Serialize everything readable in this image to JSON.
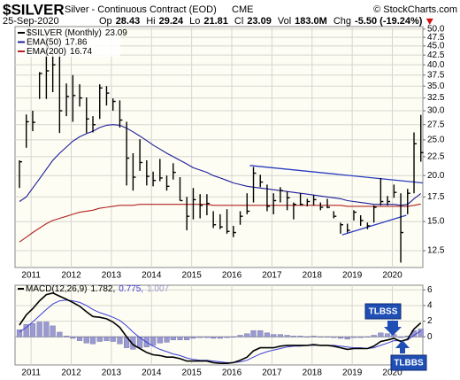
{
  "header": {
    "symbol": "$SILVER",
    "name": "Silver - Continuous Contract (EOD)",
    "exchange": "CME",
    "source": "© StockCharts.com",
    "date": "25-Sep-2020",
    "quote": [
      {
        "label": "Op",
        "value": "28.43"
      },
      {
        "label": "Hi",
        "value": "29.24"
      },
      {
        "label": "Lo",
        "value": "21.81"
      },
      {
        "label": "Cl",
        "value": "23.09"
      },
      {
        "label": "Vol",
        "value": "183.0M"
      },
      {
        "label": "Chg",
        "value": "-5.50 (-19.24%)"
      }
    ]
  },
  "chart_data": [
    {
      "type": "ohlc",
      "name": "$SILVER (Monthly)",
      "color": "#000000",
      "log_scale": true,
      "grid": true,
      "x": [
        2010.71,
        2010.88,
        2011.04,
        2011.21,
        2011.38,
        2011.54,
        2011.71,
        2011.88,
        2012.04,
        2012.21,
        2012.38,
        2012.54,
        2012.71,
        2012.88,
        2013.04,
        2013.21,
        2013.38,
        2013.54,
        2013.71,
        2013.88,
        2014.04,
        2014.21,
        2014.38,
        2014.54,
        2014.71,
        2014.88,
        2015.04,
        2015.21,
        2015.38,
        2015.54,
        2015.71,
        2015.88,
        2016.04,
        2016.21,
        2016.38,
        2016.54,
        2016.71,
        2016.88,
        2017.04,
        2017.21,
        2017.38,
        2017.54,
        2017.71,
        2017.88,
        2018.04,
        2018.21,
        2018.38,
        2018.54,
        2018.71,
        2018.88,
        2019.04,
        2019.21,
        2019.38,
        2019.54,
        2019.71,
        2019.88,
        2020.04,
        2020.21,
        2020.38,
        2020.54,
        2020.71
      ],
      "high": [
        22.0,
        29.3,
        30.0,
        38.2,
        49.8,
        44.3,
        43.0,
        35.6,
        37.5,
        35.4,
        32.6,
        29.0,
        35.4,
        35.0,
        32.4,
        32.0,
        28.0,
        23.0,
        25.1,
        22.0,
        20.5,
        22.2,
        20.0,
        21.6,
        19.8,
        17.5,
        18.5,
        17.8,
        17.8,
        16.0,
        15.7,
        16.2,
        14.6,
        16.0,
        17.9,
        21.1,
        20.1,
        18.9,
        17.9,
        18.6,
        18.1,
        16.9,
        17.9,
        17.3,
        17.7,
        16.9,
        17.3,
        16.0,
        14.9,
        14.8,
        16.1,
        15.6,
        14.9,
        16.6,
        19.7,
        17.6,
        18.9,
        17.9,
        18.4,
        26.2,
        29.24
      ],
      "low": [
        18.5,
        23.8,
        26.4,
        32.3,
        32.3,
        33.7,
        26.1,
        29.0,
        28.0,
        30.8,
        26.1,
        26.2,
        28.5,
        31.0,
        30.0,
        27.0,
        18.8,
        18.2,
        20.6,
        18.8,
        18.7,
        19.3,
        18.2,
        19.5,
        17.1,
        14.2,
        15.2,
        15.3,
        15.6,
        14.4,
        14.3,
        13.9,
        13.6,
        14.7,
        15.7,
        16.9,
        18.6,
        16.0,
        15.7,
        16.9,
        16.1,
        15.2,
        16.6,
        16.5,
        16.6,
        16.1,
        16.3,
        15.3,
        13.9,
        14.0,
        15.1,
        14.6,
        14.3,
        14.9,
        16.6,
        16.6,
        17.4,
        11.6,
        15.7,
        17.9,
        21.81
      ],
      "close": [
        21.8,
        28.0,
        27.9,
        37.9,
        38.5,
        40.0,
        30.0,
        32.8,
        33.0,
        32.5,
        28.5,
        27.5,
        34.6,
        33.5,
        31.8,
        28.3,
        22.3,
        19.8,
        21.7,
        19.9,
        19.4,
        19.7,
        18.7,
        20.4,
        17.1,
        15.5,
        17.2,
        16.6,
        16.8,
        14.7,
        14.5,
        14.1,
        14.0,
        15.5,
        16.0,
        20.3,
        19.2,
        16.5,
        17.1,
        18.2,
        17.4,
        16.7,
        16.7,
        17.0,
        17.2,
        16.4,
        16.4,
        15.5,
        14.7,
        14.2,
        15.9,
        15.1,
        14.6,
        16.4,
        17.0,
        17.0,
        18.0,
        14.0,
        17.9,
        24.4,
        23.09
      ],
      "overlays": [
        {
          "name": "EMA(50)",
          "color": "#1c1c9c",
          "values": [
            17.0,
            17.5,
            18.5,
            19.6,
            20.8,
            22.0,
            23.0,
            23.9,
            24.8,
            25.5,
            26.0,
            26.4,
            27.0,
            27.4,
            27.5,
            27.4,
            26.9,
            26.3,
            25.6,
            24.9,
            24.2,
            23.6,
            23.0,
            22.5,
            22.0,
            21.5,
            21.0,
            20.7,
            20.4,
            20.0,
            19.7,
            19.4,
            19.1,
            18.9,
            18.7,
            18.6,
            18.5,
            18.4,
            18.3,
            18.2,
            18.1,
            18.0,
            17.9,
            17.8,
            17.7,
            17.6,
            17.5,
            17.4,
            17.3,
            17.1,
            17.0,
            16.9,
            16.8,
            16.7,
            16.7,
            16.7,
            16.7,
            16.6,
            16.7,
            17.3,
            17.86
          ]
        },
        {
          "name": "EMA(200)",
          "color": "#b22222",
          "values": [
            13.2,
            13.6,
            14.0,
            14.4,
            14.8,
            15.1,
            15.3,
            15.5,
            15.7,
            15.9,
            16.0,
            16.1,
            16.3,
            16.4,
            16.5,
            16.6,
            16.6,
            16.6,
            16.7,
            16.7,
            16.7,
            16.7,
            16.7,
            16.7,
            16.7,
            16.7,
            16.7,
            16.7,
            16.7,
            16.6,
            16.6,
            16.6,
            16.6,
            16.6,
            16.6,
            16.6,
            16.6,
            16.6,
            16.6,
            16.6,
            16.6,
            16.6,
            16.6,
            16.6,
            16.6,
            16.6,
            16.6,
            16.6,
            16.6,
            16.5,
            16.5,
            16.5,
            16.5,
            16.5,
            16.5,
            16.5,
            16.5,
            16.5,
            16.5,
            16.6,
            16.74
          ]
        }
      ],
      "trendlines": [
        {
          "color": "#2a3cc0",
          "x": [
            2016.45,
            2020.76
          ],
          "values": [
            21.3,
            19.1
          ]
        },
        {
          "color": "#2a3cc0",
          "x": [
            2018.75,
            2020.35
          ],
          "values": [
            13.8,
            15.6
          ]
        }
      ],
      "xlim": [
        2010.6,
        2020.76
      ],
      "xticks": [
        2011,
        2012,
        2013,
        2014,
        2015,
        2016,
        2017,
        2018,
        2019,
        2020
      ],
      "ylim": [
        11.25,
        50.8
      ],
      "yticks": [
        12.5,
        {
          "value": 15,
          "label": "15.0"
        },
        17.5,
        {
          "value": 20,
          "label": "20.0"
        },
        22.5,
        {
          "value": 25,
          "label": "25.0"
        },
        27.5,
        {
          "value": 30,
          "label": "30.0"
        },
        32.5,
        {
          "value": 35,
          "label": "35.0"
        },
        37.5,
        {
          "value": 40,
          "label": "40.0"
        },
        42.5,
        {
          "value": 45,
          "label": "45.0"
        },
        47.5,
        {
          "value": 50,
          "label": "50.0"
        }
      ]
    },
    {
      "type": "macd",
      "title": "MACD(12,26,9)",
      "grid": true,
      "x": [
        2010.71,
        2010.88,
        2011.04,
        2011.21,
        2011.38,
        2011.54,
        2011.71,
        2011.88,
        2012.04,
        2012.21,
        2012.38,
        2012.54,
        2012.71,
        2012.88,
        2013.04,
        2013.21,
        2013.38,
        2013.54,
        2013.71,
        2013.88,
        2014.04,
        2014.21,
        2014.38,
        2014.54,
        2014.71,
        2014.88,
        2015.04,
        2015.21,
        2015.38,
        2015.54,
        2015.71,
        2015.88,
        2016.04,
        2016.21,
        2016.38,
        2016.54,
        2016.71,
        2016.88,
        2017.04,
        2017.21,
        2017.38,
        2017.54,
        2017.71,
        2017.88,
        2018.04,
        2018.21,
        2018.38,
        2018.54,
        2018.71,
        2018.88,
        2019.04,
        2019.21,
        2019.38,
        2019.54,
        2019.71,
        2019.88,
        2020.04,
        2020.21,
        2020.38,
        2020.54,
        2020.71
      ],
      "macd": {
        "color": "#000000",
        "values": [
          1.5,
          2.8,
          3.6,
          4.6,
          5.4,
          5.6,
          5.2,
          4.8,
          4.4,
          3.9,
          3.2,
          2.6,
          2.5,
          2.3,
          1.9,
          1.2,
          0.0,
          -1.0,
          -1.5,
          -2.0,
          -2.3,
          -2.4,
          -2.6,
          -2.6,
          -2.8,
          -3.1,
          -3.1,
          -3.1,
          -3.1,
          -3.3,
          -3.4,
          -3.4,
          -3.3,
          -3.0,
          -2.6,
          -1.8,
          -1.4,
          -1.4,
          -1.4,
          -1.2,
          -1.1,
          -1.1,
          -1.1,
          -1.1,
          -1.0,
          -1.1,
          -1.1,
          -1.2,
          -1.4,
          -1.6,
          -1.5,
          -1.5,
          -1.5,
          -1.2,
          -0.6,
          -0.4,
          -0.2,
          -0.6,
          -0.3,
          1.0,
          1.782
        ]
      },
      "signal": {
        "color": "#3d3dd6",
        "values": [
          0.6,
          1.2,
          1.9,
          2.7,
          3.5,
          4.2,
          4.6,
          4.7,
          4.6,
          4.4,
          4.0,
          3.5,
          3.1,
          2.8,
          2.5,
          2.1,
          1.4,
          0.6,
          -0.1,
          -0.7,
          -1.2,
          -1.6,
          -1.9,
          -2.2,
          -2.4,
          -2.7,
          -2.9,
          -3.0,
          -3.0,
          -3.1,
          -3.2,
          -3.3,
          -3.3,
          -3.2,
          -3.0,
          -2.6,
          -2.2,
          -1.9,
          -1.7,
          -1.5,
          -1.3,
          -1.2,
          -1.2,
          -1.1,
          -1.1,
          -1.1,
          -1.1,
          -1.1,
          -1.2,
          -1.3,
          -1.4,
          -1.4,
          -1.5,
          -1.4,
          -1.1,
          -0.8,
          -0.5,
          -0.5,
          -0.4,
          0.2,
          0.775
        ]
      },
      "histogram": {
        "color": "#9a9ad0",
        "values": [
          0.9,
          1.6,
          1.7,
          1.9,
          1.9,
          1.4,
          0.6,
          0.1,
          -0.2,
          -0.5,
          -0.8,
          -0.9,
          -0.6,
          -0.5,
          -0.6,
          -0.9,
          -1.4,
          -1.6,
          -1.4,
          -1.3,
          -1.1,
          -0.8,
          -0.7,
          -0.4,
          -0.4,
          -0.4,
          -0.2,
          -0.1,
          -0.1,
          -0.2,
          -0.2,
          -0.1,
          0.0,
          0.2,
          0.4,
          0.8,
          0.8,
          0.5,
          0.3,
          0.3,
          0.2,
          0.1,
          0.1,
          0.0,
          0.1,
          0.0,
          0.0,
          -0.1,
          -0.2,
          -0.3,
          -0.1,
          -0.1,
          0.0,
          0.2,
          0.5,
          0.4,
          0.3,
          -0.1,
          0.1,
          0.8,
          1.007
        ]
      },
      "legend_labels": [
        "1.782,",
        "0.775,",
        "1.007"
      ],
      "annotations": [
        {
          "text": "TLBSS"
        },
        {
          "text": "TLBBS"
        }
      ],
      "xlim": [
        2010.6,
        2020.76
      ],
      "xticks": [
        2011,
        2012,
        2013,
        2014,
        2015,
        2016,
        2017,
        2018,
        2019,
        2020
      ],
      "ylim": [
        -3.6,
        6.6
      ],
      "yticks": [
        0,
        2,
        4,
        6
      ]
    }
  ]
}
